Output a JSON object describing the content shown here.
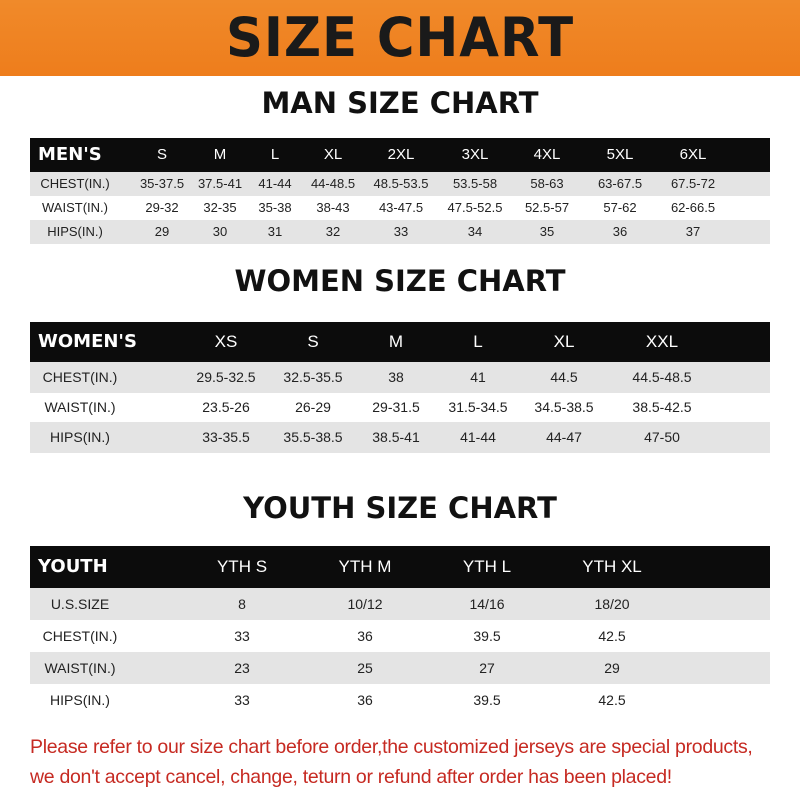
{
  "title": "SIZE CHART",
  "men": {
    "title": "MAN SIZE CHART",
    "header": [
      "MEN'S",
      "S",
      "M",
      "L",
      "XL",
      "2XL",
      "3XL",
      "4XL",
      "5XL",
      "6XL"
    ],
    "rows": [
      [
        "CHEST(IN.)",
        "35-37.5",
        "37.5-41",
        "41-44",
        "44-48.5",
        "48.5-53.5",
        "53.5-58",
        "58-63",
        "63-67.5",
        "67.5-72"
      ],
      [
        "WAIST(IN.)",
        "29-32",
        "32-35",
        "35-38",
        "38-43",
        "43-47.5",
        "47.5-52.5",
        "52.5-57",
        "57-62",
        "62-66.5"
      ],
      [
        "HIPS(IN.)",
        "29",
        "30",
        "31",
        "32",
        "33",
        "34",
        "35",
        "36",
        "37"
      ]
    ]
  },
  "women": {
    "title": "WOMEN SIZE CHART",
    "header": [
      "WOMEN'S",
      "XS",
      "S",
      "M",
      "L",
      "XL",
      "XXL"
    ],
    "rows": [
      [
        "CHEST(IN.)",
        "29.5-32.5",
        "32.5-35.5",
        "38",
        "41",
        "44.5",
        "44.5-48.5"
      ],
      [
        "WAIST(IN.)",
        "23.5-26",
        "26-29",
        "29-31.5",
        "31.5-34.5",
        "34.5-38.5",
        "38.5-42.5"
      ],
      [
        "HIPS(IN.)",
        "33-35.5",
        "35.5-38.5",
        "38.5-41",
        "41-44",
        "44-47",
        "47-50"
      ]
    ]
  },
  "youth": {
    "title": "YOUTH SIZE CHART",
    "header": [
      "YOUTH",
      "YTH S",
      "YTH M",
      "YTH L",
      "YTH XL"
    ],
    "rows": [
      [
        "U.S.SIZE",
        "8",
        "10/12",
        "14/16",
        "18/20"
      ],
      [
        "CHEST(IN.)",
        "33",
        "36",
        "39.5",
        "42.5"
      ],
      [
        "WAIST(IN.)",
        "23",
        "25",
        "27",
        "29"
      ],
      [
        "HIPS(IN.)",
        "33",
        "36",
        "39.5",
        "42.5"
      ]
    ]
  },
  "footer": {
    "line1": "Please refer to our size chart before order,the customized jerseys are special products,",
    "line2": "we don't accept cancel, change, teturn or refund after order has been placed!"
  },
  "colors": {
    "banner": "#ee7d1c",
    "header_row": "#0c0c0c",
    "stripe": "#e4e4e4",
    "notice": "#c62a22"
  }
}
